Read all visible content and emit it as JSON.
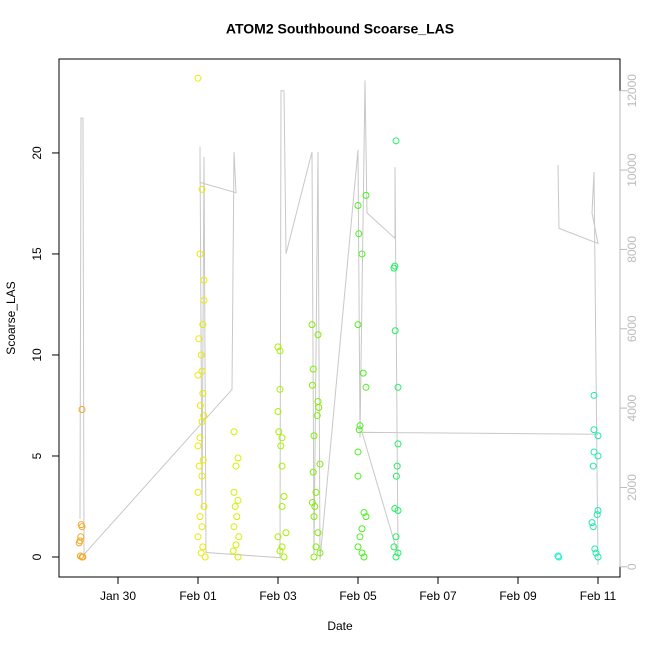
{
  "chart_data": {
    "type": "scatter",
    "title": "ATOM2 Southbound Scoarse_LAS",
    "x_label": "Date",
    "y_label": "Scoarse_LAS",
    "xlim": [
      28.525,
      42.55
    ],
    "xticks": [
      {
        "value": 30,
        "label": "Jan 30"
      },
      {
        "value": 32,
        "label": "Feb 01"
      },
      {
        "value": 34,
        "label": "Feb 03"
      },
      {
        "value": 36,
        "label": "Feb 05"
      },
      {
        "value": 38,
        "label": "Feb 07"
      },
      {
        "value": 40,
        "label": "Feb 09"
      },
      {
        "value": 42,
        "label": "Feb 11"
      }
    ],
    "ylim": [
      -0.99,
      24.65
    ],
    "yticks": [
      0,
      5,
      10,
      15,
      20
    ],
    "y2lim": [
      -257,
      12800
    ],
    "y2ticks": [
      0,
      2000,
      4000,
      6000,
      8000,
      10000,
      12000
    ],
    "grid": false,
    "series": [
      {
        "type": "line",
        "axis": "y2",
        "color": "#c8c8c8",
        "x": [
          29.05,
          29.075,
          29.125,
          29.15,
          32.85,
          32.9,
          32.95,
          32.05,
          32.05,
          32.1,
          32.15,
          32.2,
          34.05,
          34.075,
          34.15,
          34.2,
          34.85,
          34.9,
          35.0,
          35.05,
          36.0,
          36.05,
          36.175,
          36.225,
          36.925,
          36.925,
          37.0,
          36.1,
          42.0,
          null,
          41.0,
          41.025,
          42.0,
          41.85,
          41.9,
          42.0
        ],
        "values": [
          1210,
          11310,
          11310,
          310,
          4470,
          10460,
          9430,
          9690,
          10590,
          1460,
          10330,
          360,
          230,
          12000,
          12000,
          7890,
          10460,
          310,
          10460,
          180,
          10510,
          3260,
          12260,
          8920,
          8280,
          10070,
          310,
          3390,
          3340,
          null,
          10130,
          8530,
          8150,
          8920,
          9950,
          50
        ]
      },
      {
        "color": "#f5a623",
        "x": [
          29.1,
          29.08,
          29.1,
          29.07,
          29.05,
          29.03,
          29.06,
          29.1,
          29.12
        ],
        "values": [
          7.3,
          1.6,
          1.5,
          1.0,
          0.8,
          0.7,
          0.05,
          0,
          0
        ]
      },
      {
        "color": "#eaea00",
        "x": [
          32.0,
          32.1,
          32.05,
          32.15,
          32.15,
          32.12,
          32.02,
          32.08,
          32.1,
          32.0,
          32.12,
          32.06,
          32.14,
          32.1,
          32.05,
          32.0,
          32.13,
          32.03,
          32.1,
          32.0,
          32.15,
          32.05,
          32.1,
          32.0,
          32.12,
          32.08,
          32.18
        ],
        "values": [
          23.7,
          18.2,
          15.0,
          13.7,
          12.7,
          11.5,
          10.8,
          10.0,
          9.2,
          9.0,
          8.1,
          7.5,
          7.0,
          6.7,
          5.9,
          5.5,
          4.8,
          4.5,
          4.0,
          3.2,
          2.5,
          2.0,
          1.5,
          1.0,
          0.5,
          0.2,
          0
        ]
      },
      {
        "color": "#d4f000",
        "x": [
          32.9,
          33.0,
          32.95,
          32.9,
          33.0,
          32.93,
          32.97,
          32.9,
          33.02,
          32.95,
          32.88,
          33.0
        ],
        "values": [
          6.2,
          4.9,
          4.5,
          3.2,
          2.8,
          2.5,
          2.0,
          1.5,
          1.0,
          0.6,
          0.3,
          0
        ]
      },
      {
        "color": "#a8f000",
        "x": [
          34.0,
          34.05,
          34.05,
          34.0,
          34.02,
          34.1,
          34.07,
          34.1,
          34.15,
          34.1,
          34.2,
          34.0,
          34.1,
          34.05,
          34.15
        ],
        "values": [
          10.4,
          10.2,
          8.3,
          7.2,
          6.2,
          5.9,
          5.5,
          4.5,
          3.0,
          2.5,
          1.2,
          1.0,
          0.5,
          0.3,
          0
        ]
      },
      {
        "color": "#7ef000",
        "x": [
          34.85,
          35.0,
          34.88,
          34.86,
          35.0,
          35.02,
          34.98,
          34.9,
          35.05,
          34.88,
          34.95,
          34.86,
          34.92,
          34.9,
          35.0,
          34.95,
          35.05,
          34.9
        ],
        "values": [
          11.5,
          11.0,
          9.3,
          8.5,
          7.7,
          7.4,
          7.0,
          6.0,
          4.6,
          4.2,
          3.2,
          2.7,
          2.5,
          2.0,
          1.2,
          0.5,
          0.2,
          0
        ]
      },
      {
        "color": "#4cf020",
        "x": [
          36.2,
          36.0,
          36.02,
          36.1,
          36.0,
          36.13,
          36.2,
          36.05,
          36.03,
          36.0,
          36.0,
          36.15,
          36.2,
          36.1,
          36.05,
          36.0,
          36.1,
          36.15
        ],
        "values": [
          17.9,
          17.4,
          16.0,
          15.0,
          11.5,
          9.1,
          8.4,
          6.5,
          6.3,
          5.2,
          4.0,
          2.2,
          2.0,
          1.4,
          1.0,
          0.5,
          0.2,
          0
        ]
      },
      {
        "color": "#20f060",
        "x": [
          36.95,
          36.92,
          36.9,
          36.93,
          37.0,
          37.0,
          36.98,
          36.96,
          36.92,
          37.0,
          36.95,
          36.9,
          37.0,
          36.95
        ],
        "values": [
          20.6,
          14.4,
          14.3,
          11.2,
          8.4,
          5.6,
          4.5,
          4.0,
          2.4,
          2.3,
          1.0,
          0.5,
          0.2,
          0
        ]
      },
      {
        "color": "#20f0d0",
        "x": [
          41.0,
          41.02
        ],
        "values": [
          0.05,
          0
        ]
      },
      {
        "color": "#20e8b0",
        "x": [
          41.9,
          41.9,
          42.0,
          41.9,
          42.0,
          41.88,
          42.0,
          41.98,
          41.85,
          41.88,
          41.92,
          41.95,
          42.0
        ],
        "values": [
          8.0,
          6.3,
          6.0,
          5.2,
          5.0,
          4.5,
          2.3,
          2.1,
          1.7,
          1.5,
          0.4,
          0.2,
          0
        ]
      }
    ]
  }
}
